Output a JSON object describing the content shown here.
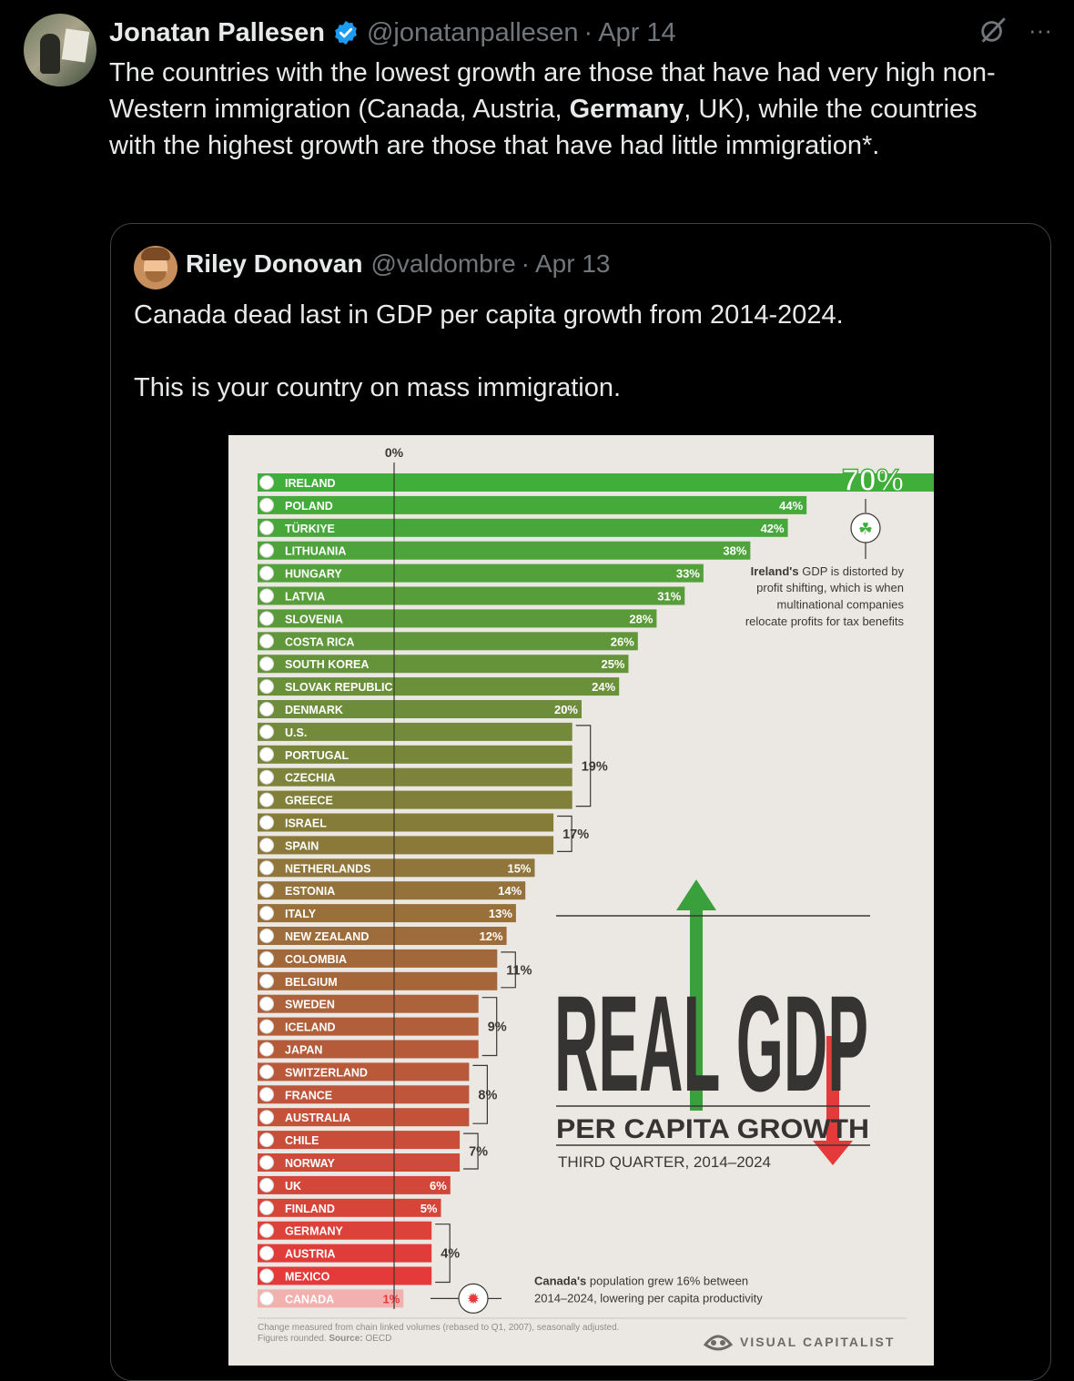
{
  "tweet": {
    "author_name": "Jonatan Pallesen",
    "handle": "@jonatanpallesen",
    "date": "Apr 14",
    "separator": "·",
    "text_parts": [
      "The countries with the lowest growth are those that have had very high non-Western immigration (Canada, Austria, ",
      "Germany",
      ", UK), while the countries with the highest growth are those that have had little immigration*."
    ],
    "more_label": "···"
  },
  "quote": {
    "author_name": "Riley Donovan",
    "handle": "@valdombre",
    "date": "Apr 13",
    "separator": "·",
    "line1": "Canada dead last in GDP per capita growth from 2014-2024.",
    "line2": "This is your country on mass immigration."
  },
  "infographic": {
    "title_big": "REAL GDP",
    "title_sub": "PER CAPITA GROWTH",
    "period": "THIRD QUARTER, 2014–2024",
    "ireland_note_bold": "Ireland's",
    "ireland_note_lines": [
      "GDP is distorted by",
      "profit shifting, which is when",
      "multinational companies",
      "relocate profits for tax benefits"
    ],
    "canada_note_bold": "Canada's",
    "canada_note_lines": [
      "population grew 16% between",
      "2014–2024, lowering per capita productivity"
    ],
    "footnote_line1": "Change measured from chain linked volumes (rebased to Q1, 2007), seasonally adjusted.",
    "footnote_line2_prefix": "Figures rounded.",
    "footnote_source_label": "Source:",
    "footnote_source": "OECD",
    "brand": "VISUAL CAPITALIST"
  },
  "chart_data": {
    "type": "bar",
    "orientation": "horizontal",
    "title": "REAL GDP PER CAPITA GROWTH",
    "subtitle": "THIRD QUARTER, 2014–2024",
    "axis_zero_label": "0%",
    "categories": [
      "IRELAND",
      "POLAND",
      "TÜRKIYE",
      "LITHUANIA",
      "HUNGARY",
      "LATVIA",
      "SLOVENIA",
      "COSTA RICA",
      "SOUTH KOREA",
      "SLOVAK REPUBLIC",
      "DENMARK",
      "U.S.",
      "PORTUGAL",
      "CZECHIA",
      "GREECE",
      "ISRAEL",
      "SPAIN",
      "NETHERLANDS",
      "ESTONIA",
      "ITALY",
      "NEW ZEALAND",
      "COLOMBIA",
      "BELGIUM",
      "SWEDEN",
      "ICELAND",
      "JAPAN",
      "SWITZERLAND",
      "FRANCE",
      "AUSTRALIA",
      "CHILE",
      "NORWAY",
      "UK",
      "FINLAND",
      "GERMANY",
      "AUSTRIA",
      "MEXICO",
      "CANADA"
    ],
    "values": [
      70,
      44,
      42,
      38,
      33,
      31,
      28,
      26,
      25,
      24,
      20,
      19,
      19,
      19,
      19,
      17,
      17,
      15,
      14,
      13,
      12,
      11,
      11,
      9,
      9,
      9,
      8,
      8,
      8,
      7,
      7,
      6,
      5,
      4,
      4,
      4,
      1
    ],
    "value_labels": [
      "70%",
      "44%",
      "42%",
      "38%",
      "33%",
      "31%",
      "28%",
      "26%",
      "25%",
      "24%",
      "20%",
      "",
      "",
      "",
      "",
      "",
      "",
      "15%",
      "14%",
      "13%",
      "12%",
      "",
      "",
      "",
      "",
      "",
      "",
      "",
      "",
      "",
      "",
      "6%",
      "5%",
      "",
      "",
      "",
      "1%"
    ],
    "group_labels": [
      {
        "text": "19%",
        "from": 11,
        "to": 14
      },
      {
        "text": "17%",
        "from": 15,
        "to": 16
      },
      {
        "text": "11%",
        "from": 21,
        "to": 22
      },
      {
        "text": "9%",
        "from": 23,
        "to": 25
      },
      {
        "text": "8%",
        "from": 26,
        "to": 28
      },
      {
        "text": "7%",
        "from": 29,
        "to": 30
      },
      {
        "text": "4%",
        "from": 33,
        "to": 35
      }
    ],
    "colors": {
      "top": "#3fae3a",
      "bottom": "#e53a3a",
      "highlight": "#f2b0ae"
    }
  }
}
